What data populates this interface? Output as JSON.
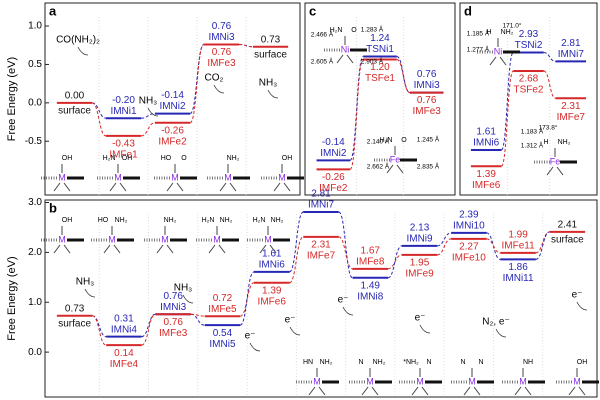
{
  "panels": [
    {
      "letter": "a",
      "y_label": "Free Energy (eV)",
      "ylim": [
        -1.2,
        1.3
      ],
      "yticks": [
        -0.5,
        {
          "value": 0,
          "label": "0.0"
        },
        0.5,
        {
          "value": 1,
          "label": "1.0"
        }
      ],
      "steps": [
        [
          {
            "label": "surface",
            "value": 0,
            "value_label": "0.00",
            "color": "#d62828",
            "text_color": "#111"
          }
        ],
        [
          {
            "label": "IMNi1",
            "value": -0.2,
            "value_label": "-0.20",
            "color": "#2727b5"
          },
          {
            "label": "IMFe1",
            "value": -0.43,
            "color": "#d62828"
          }
        ],
        [
          {
            "label": "IMNi2",
            "value": -0.14,
            "color": "#2727b5"
          },
          {
            "label": "IMFe2",
            "value": -0.26,
            "color": "#d62828"
          }
        ],
        [
          {
            "label": "IMNi3",
            "value": 0.76,
            "color": "#2727b5"
          },
          {
            "label": "IMFe3",
            "value": 0.76,
            "color": "#d62828"
          }
        ],
        [
          {
            "label": "surface",
            "value": 0.73,
            "color": "#d62828",
            "text_color": "#111"
          }
        ]
      ],
      "annotations": [
        "CO(NH₂)₂",
        "NH₃",
        "CO₂",
        "NH₃"
      ],
      "structures": [
        {
          "ligands": [
            "OH"
          ],
          "metal": "M"
        },
        {
          "ligands": [
            "H₂N",
            "OH"
          ],
          "metal": "M"
        },
        {
          "ligands": [
            "HO",
            "O"
          ],
          "metal": "M"
        },
        {
          "ligands": [
            "NH₂"
          ],
          "metal": "M"
        },
        {
          "ligands": [
            "OH"
          ],
          "metal": "M"
        }
      ]
    },
    {
      "letter": "b",
      "y_label": "Free Energy (eV)",
      "ylim": [
        -0.9,
        3.05
      ],
      "yticks": [
        {
          "value": 0,
          "label": "0.0"
        },
        {
          "value": 1,
          "label": "1.0"
        },
        {
          "value": 2,
          "label": "2.0"
        },
        {
          "value": 3,
          "label": "3.0"
        }
      ],
      "steps": [
        [
          {
            "label": "surface",
            "value": 0.73,
            "color": "#d62828",
            "text_color": "#111"
          }
        ],
        [
          {
            "label": "IMNi4",
            "value": 0.31,
            "color": "#2727b5"
          },
          {
            "label": "IMFe4",
            "value": 0.14,
            "color": "#d62828"
          }
        ],
        [
          {
            "label": "IMNi3",
            "value": 0.76,
            "color": "#2727b5"
          },
          {
            "label": "IMFe3",
            "value": 0.76,
            "color": "#d62828"
          }
        ],
        [
          {
            "label": "IMFe5",
            "value": 0.72,
            "color": "#d62828"
          },
          {
            "label": "IMNi5",
            "value": 0.54,
            "color": "#2727b5"
          }
        ],
        [
          {
            "label": "IMNi6",
            "value": 1.61,
            "color": "#2727b5"
          },
          {
            "label": "IMFe6",
            "value": 1.39,
            "color": "#d62828"
          }
        ],
        [
          {
            "label": "IMNi7",
            "value": 2.81,
            "color": "#2727b5"
          },
          {
            "label": "IMFe7",
            "value": 2.31,
            "color": "#d62828"
          }
        ],
        [
          {
            "label": "IMFe8",
            "value": 1.67,
            "color": "#d62828"
          },
          {
            "label": "IMNi8",
            "value": 1.49,
            "color": "#2727b5"
          }
        ],
        [
          {
            "label": "IMNi9",
            "value": 2.13,
            "color": "#2727b5"
          },
          {
            "label": "IMFe9",
            "value": 1.95,
            "color": "#d62828"
          }
        ],
        [
          {
            "label": "IMNi10",
            "value": 2.39,
            "color": "#2727b5"
          },
          {
            "label": "IMFe10",
            "value": 2.27,
            "color": "#d62828"
          }
        ],
        [
          {
            "label": "IMFe11",
            "value": 1.99,
            "color": "#d62828"
          },
          {
            "label": "IMNi11",
            "value": 1.86,
            "color": "#2727b5"
          }
        ],
        [
          {
            "label": "surface",
            "value": 2.41,
            "color": "#d62828",
            "text_color": "#111"
          }
        ]
      ],
      "annotations": [
        "NH₃",
        "NH₃",
        "e⁻",
        "e⁻",
        "e⁻",
        "e⁻",
        "N₂, e⁻",
        "e⁻"
      ],
      "structures": [
        {
          "ligands": [
            "OH"
          ],
          "metal": "M"
        },
        {
          "ligands": [
            "HO",
            "NH₂"
          ],
          "metal": "M"
        },
        {
          "ligands": [
            "NH₂"
          ],
          "metal": "M"
        },
        {
          "ligands": [
            "H₂N",
            "NH₂"
          ],
          "metal": "M"
        },
        {
          "ligands": [
            "H₂N",
            "NH₂"
          ],
          "metal": "M"
        },
        {
          "ligands": [
            "HN",
            "NH₂"
          ],
          "metal": "M"
        },
        {
          "ligands": [
            "N",
            "NH₂"
          ],
          "metal": "M"
        },
        {
          "ligands": [
            "*NH₂",
            "N"
          ],
          "metal": "M"
        },
        {
          "ligands": [
            "N",
            "N"
          ],
          "metal": "M"
        },
        {
          "ligands": [
            "NH"
          ],
          "metal": "M"
        },
        {
          "ligands": [
            "OH"
          ],
          "metal": "M"
        }
      ]
    },
    {
      "letter": "c",
      "ylim": [
        -0.6,
        1.95
      ],
      "steps": [
        [
          {
            "label": "IMNi2",
            "value": -0.14,
            "color": "#2727b5"
          },
          {
            "label": "IMFe2",
            "value": -0.26,
            "color": "#d62828"
          }
        ],
        [
          {
            "label": "TSNi1",
            "value": 1.24,
            "color": "#2727b5"
          },
          {
            "label": "TSFe1",
            "value": 1.2,
            "value_label": "1.20",
            "color": "#d62828"
          }
        ],
        [
          {
            "label": "IMNi3",
            "value": 0.76,
            "color": "#2727b5"
          },
          {
            "label": "IMFe3",
            "value": 0.76,
            "color": "#d62828"
          }
        ]
      ],
      "structures": [
        {
          "ligands": [
            "H₂N",
            "O"
          ],
          "metal": "Ni"
        },
        {
          "ligands": [
            "H₂N",
            "O"
          ],
          "metal": "Fe"
        }
      ],
      "geometry_labels": [
        "2.466 Å",
        "1.283 Å",
        "2.605 Å",
        "2.903 Å",
        "2.140 Å",
        "1.245 Å",
        "2.662 Å",
        "2.835 Å"
      ]
    },
    {
      "letter": "d",
      "ylim": [
        1.0,
        3.6
      ],
      "steps": [
        [
          {
            "label": "IMNi6",
            "value": 1.61,
            "color": "#2727b5"
          },
          {
            "label": "IMFe6",
            "value": 1.39,
            "color": "#d62828"
          }
        ],
        [
          {
            "label": "TSNi2",
            "value": 2.93,
            "color": "#2727b5"
          },
          {
            "label": "TSFe2",
            "value": 2.68,
            "color": "#d62828"
          }
        ],
        [
          {
            "label": "IMNi7",
            "value": 2.81,
            "color": "#2727b5"
          },
          {
            "label": "IMFe7",
            "value": 2.31,
            "color": "#d62828"
          }
        ]
      ],
      "structures": [
        {
          "ligands": [
            "H",
            "NH₂"
          ],
          "metal": "Ni"
        },
        {
          "ligands": [
            "H",
            "NH₂"
          ],
          "metal": "Fe"
        }
      ],
      "geometry_labels": [
        "1.185 Å",
        "171.0°",
        "1.277 Å",
        "1.183 Å",
        "173.8°",
        "1.312 Å"
      ]
    }
  ]
}
